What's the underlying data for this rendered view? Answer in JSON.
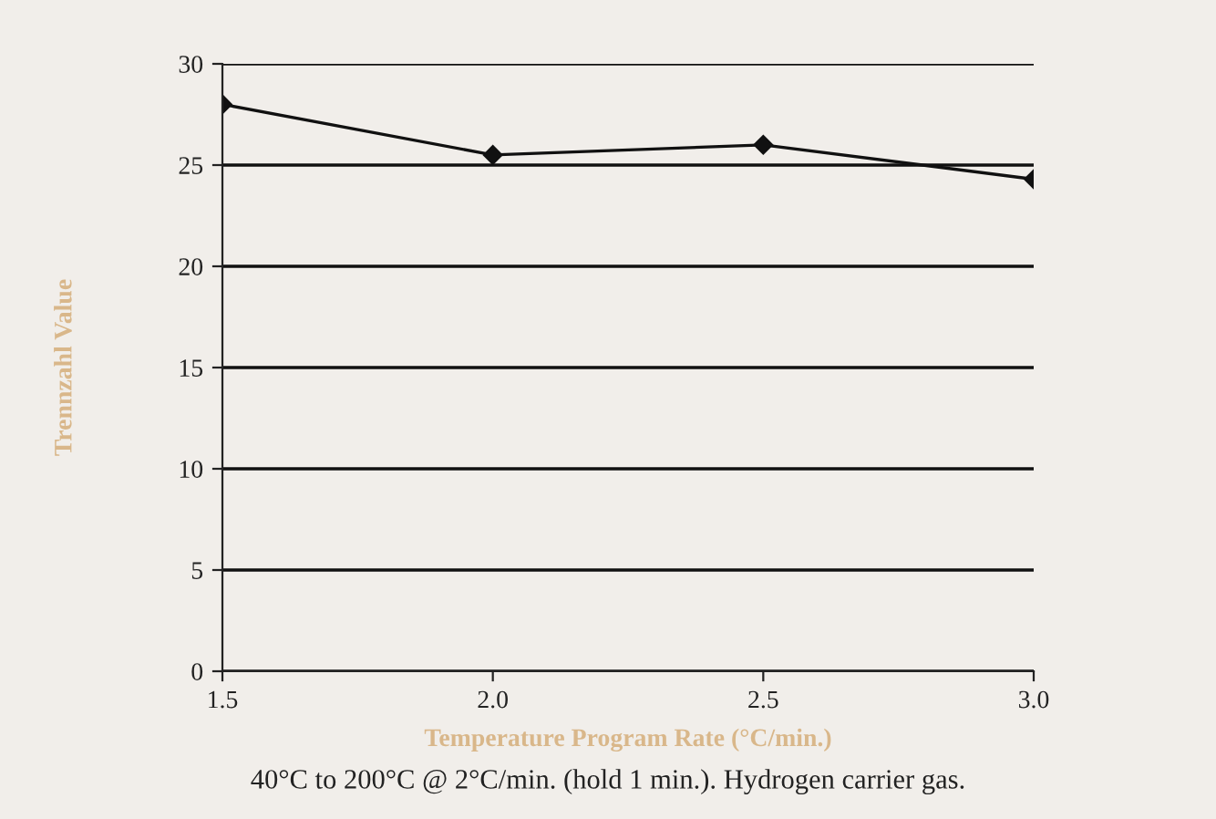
{
  "chart_data": {
    "type": "line",
    "xlabel": "Temperature Program Rate (°C/min.)",
    "ylabel": "Trennzahl Value",
    "annotations": [
      "40°C to 200°C @ 2°C/min. (hold 1 min.). Hydrogen carrier gas."
    ],
    "x": [
      1.5,
      2.0,
      2.5,
      3.0
    ],
    "series": [
      {
        "color": "#111111",
        "values": [
          28.0,
          25.5,
          26.0,
          24.3
        ]
      }
    ],
    "xlim": [
      1.5,
      3.0
    ],
    "xticks": [
      {
        "value": 1.5,
        "label": "1.5"
      },
      {
        "value": 2.0,
        "label": "2.0"
      },
      {
        "value": 2.5,
        "label": "2.5"
      },
      {
        "value": 3.0,
        "label": "3.0"
      }
    ],
    "ylim": [
      0,
      30
    ],
    "yticks": [
      0,
      5,
      10,
      15,
      20,
      25,
      30
    ],
    "grid": "y",
    "marker": "diamond",
    "line_style": "solid"
  }
}
